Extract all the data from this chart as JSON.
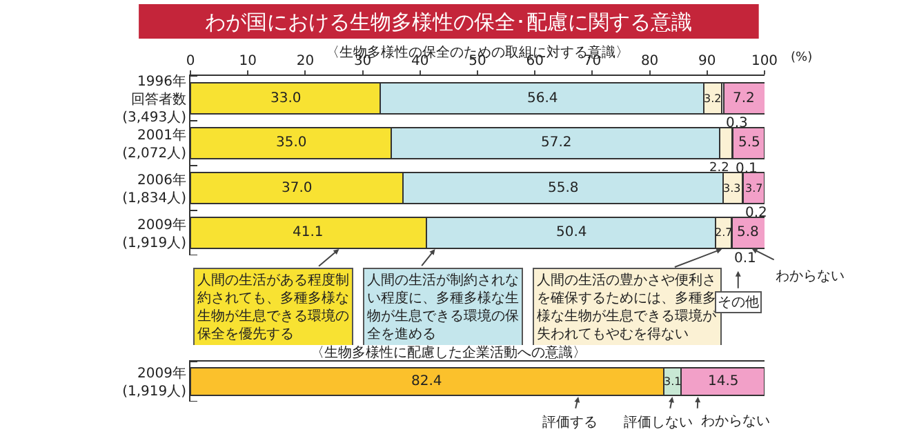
{
  "chart_data": [
    {
      "type": "bar",
      "title": "わが国における生物多様性の保全･配慮に関する意識",
      "subtitle": "〈生物多様性の保全のための取組に対する意識〉",
      "xlabel": "(%)",
      "orientation": "horizontal",
      "stacked": true,
      "legend": "bottom",
      "categories": [
        "1996年回答者数(3,493人)",
        "2001年(2,072人)",
        "2006年(1,834人)",
        "2009年(1,919人)"
      ],
      "xlim": [
        0,
        100
      ],
      "xticks": [
        0,
        10,
        20,
        30,
        40,
        50,
        60,
        70,
        80,
        90,
        100
      ],
      "series": [
        {
          "name": "人間の生活がある程度制約されても、多種多様な生物が生息できる環境の保全を優先する",
          "color": "#f8e232",
          "values": [
            33.0,
            35.0,
            37.0,
            41.1
          ],
          "value_labels": [
            "33.0",
            "35.0",
            "37.0",
            "41.1"
          ]
        },
        {
          "name": "人間の生活が制約されない程度に、多種多様な生物が生息できる環境の保全を進める",
          "color": "#c4e6ec",
          "values": [
            56.4,
            57.2,
            55.8,
            50.4
          ],
          "value_labels": [
            "56.4",
            "57.2",
            "55.8",
            "50.4"
          ]
        },
        {
          "name": "人間の生活の豊かさや便利さを確保するためには、多種多様な生物が生息できる環境が失われてもやむを得ない",
          "color": "#fbf1d4",
          "values": [
            3.2,
            2.2,
            3.3,
            2.7
          ],
          "value_labels": [
            "3.2",
            "2.2",
            "3.3",
            "2.7"
          ]
        },
        {
          "name": "その他",
          "color": "#ffffff",
          "values": [
            0.3,
            0.1,
            0.2,
            0.1
          ],
          "value_labels": [
            "0.3",
            "0.1",
            "0.2",
            "0.1"
          ]
        },
        {
          "name": "わからない",
          "color": "#f2a0c8",
          "values": [
            7.2,
            5.5,
            3.7,
            5.8
          ],
          "value_labels": [
            "7.2",
            "5.5",
            "3.7",
            "5.8"
          ]
        }
      ]
    },
    {
      "type": "bar",
      "title": "〈生物多様性に配慮した企業活動への意識〉",
      "orientation": "horizontal",
      "stacked": true,
      "legend": "bottom",
      "tick_labels": "y",
      "categories": [
        "2009年(1,919人)"
      ],
      "xlim": [
        0,
        100
      ],
      "series": [
        {
          "name": "評価する",
          "color": "#fbc12c",
          "values": [
            82.4
          ],
          "value_labels": [
            "82.4"
          ]
        },
        {
          "name": "評価しない",
          "color": "#c8e8d4",
          "values": [
            3.1
          ],
          "value_labels": [
            "3.1"
          ]
        },
        {
          "name": "わからない",
          "color": "#f2a0c8",
          "values": [
            14.5
          ],
          "value_labels": [
            "14.5"
          ]
        }
      ]
    }
  ]
}
